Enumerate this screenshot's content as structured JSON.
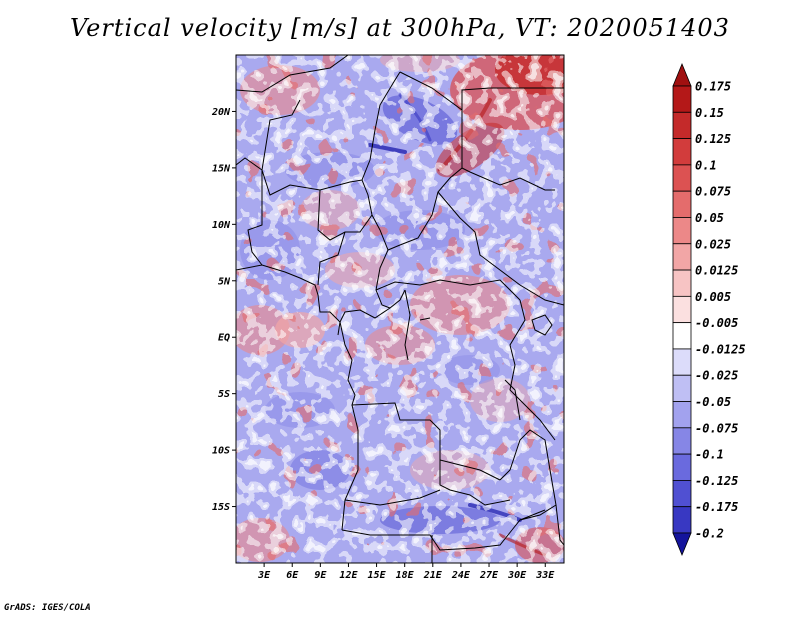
{
  "title": "Vertical velocity [m/s] at 300hPa, VT: 2020051403",
  "credit": "GrADS: IGES/COLA",
  "map": {
    "lon_range": [
      0,
      35
    ],
    "lat_range": [
      -20,
      25
    ],
    "lat_ticks": [
      {
        "value": 20,
        "label": "20N"
      },
      {
        "value": 15,
        "label": "15N"
      },
      {
        "value": 10,
        "label": "10N"
      },
      {
        "value": 5,
        "label": "5N"
      },
      {
        "value": 0,
        "label": "EQ"
      },
      {
        "value": -5,
        "label": "5S"
      },
      {
        "value": -10,
        "label": "10S"
      },
      {
        "value": -15,
        "label": "15S"
      }
    ],
    "lon_ticks": [
      {
        "value": 3,
        "label": "3E"
      },
      {
        "value": 6,
        "label": "6E"
      },
      {
        "value": 9,
        "label": "9E"
      },
      {
        "value": 12,
        "label": "12E"
      },
      {
        "value": 15,
        "label": "15E"
      },
      {
        "value": 18,
        "label": "18E"
      },
      {
        "value": 21,
        "label": "21E"
      },
      {
        "value": 24,
        "label": "24E"
      },
      {
        "value": 27,
        "label": "27E"
      },
      {
        "value": 30,
        "label": "30E"
      },
      {
        "value": 33,
        "label": "33E"
      }
    ],
    "colorbar": [
      {
        "label": "0.175",
        "color": "#b41818"
      },
      {
        "label": "0.15",
        "color": "#c42a2a"
      },
      {
        "label": "0.125",
        "color": "#d23c3c"
      },
      {
        "label": "0.1",
        "color": "#dc5252"
      },
      {
        "label": "0.075",
        "color": "#e46c6c"
      },
      {
        "label": "0.05",
        "color": "#ec8888"
      },
      {
        "label": "0.025",
        "color": "#f2a6a6"
      },
      {
        "label": "0.0125",
        "color": "#f7c4c4"
      },
      {
        "label": "0.005",
        "color": "#fbe0e0"
      },
      {
        "label": "-0.005",
        "color": "#ffffff"
      },
      {
        "label": "-0.0125",
        "color": "#dcdcfa"
      },
      {
        "label": "-0.025",
        "color": "#bfbff4"
      },
      {
        "label": "-0.05",
        "color": "#a2a2ee"
      },
      {
        "label": "-0.075",
        "color": "#8686e6"
      },
      {
        "label": "-0.1",
        "color": "#6a6ade"
      },
      {
        "label": "-0.125",
        "color": "#5050d2"
      },
      {
        "label": "-0.175",
        "color": "#3838c2"
      },
      {
        "label": "-0.2",
        "color": "#2424b0"
      }
    ],
    "colorbar_top_color": "#a01010",
    "colorbar_bottom_color": "#14149c"
  }
}
